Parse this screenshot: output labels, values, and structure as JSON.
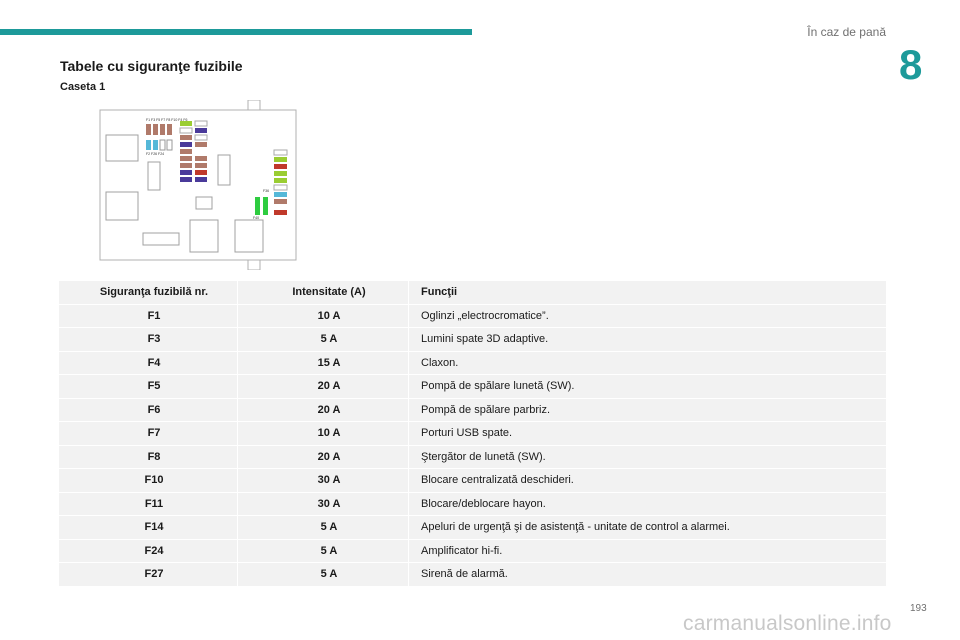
{
  "header": {
    "chapter_title": "În caz de pană",
    "chapter_number": "8"
  },
  "section": {
    "title": "Tabele cu siguranţe fuzibile",
    "subtitle": "Caseta 1"
  },
  "diagram": {
    "top_labels": "F1 F3 F5 F7 F8 F10 F4 F6",
    "left_label": "F2 F26 F24",
    "fuse_labels": [
      "F11",
      "F12",
      "F13",
      "F14",
      "F21",
      "F22",
      "F23",
      "F24",
      "F25",
      "F26",
      "F27",
      "F28",
      "F29",
      "F30",
      "F31"
    ],
    "right_label_a": "F36",
    "right_label_b": "F40"
  },
  "table": {
    "headers": [
      "Siguranţa fuzibilă nr.",
      "Intensitate (A)",
      "Funcţii"
    ],
    "rows": [
      {
        "num": "F1",
        "amp": "10 A",
        "func": "Oglinzi „electrocromatice”."
      },
      {
        "num": "F3",
        "amp": "5 A",
        "func": "Lumini spate 3D adaptive."
      },
      {
        "num": "F4",
        "amp": "15 A",
        "func": "Claxon."
      },
      {
        "num": "F5",
        "amp": "20 A",
        "func": "Pompă de spălare lunetă (SW)."
      },
      {
        "num": "F6",
        "amp": "20 A",
        "func": "Pompă de spălare parbriz."
      },
      {
        "num": "F7",
        "amp": "10 A",
        "func": "Porturi USB spate."
      },
      {
        "num": "F8",
        "amp": "20 A",
        "func": "Ştergător de lunetă (SW)."
      },
      {
        "num": "F10",
        "amp": "30 A",
        "func": "Blocare centralizată deschideri."
      },
      {
        "num": "F11",
        "amp": "30 A",
        "func": "Blocare/deblocare hayon."
      },
      {
        "num": "F14",
        "amp": "5 A",
        "func": "Apeluri de urgenţă şi de asistenţă - unitate de control a alarmei."
      },
      {
        "num": "F24",
        "amp": "5 A",
        "func": "Amplificator hi-fi."
      },
      {
        "num": "F27",
        "amp": "5 A",
        "func": "Sirenă de alarmă."
      }
    ]
  },
  "footer": {
    "page_number": "193",
    "watermark": "carmanualsonline.info"
  }
}
